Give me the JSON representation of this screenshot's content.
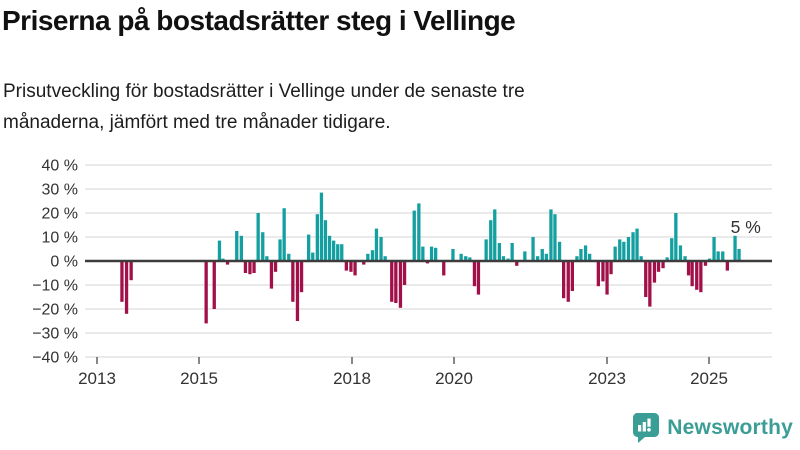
{
  "header": {
    "title": "Priserna på bostadsrätter steg i Vellinge",
    "subtitle_lines": [
      "Prisutveckling för bostadsrätter i Vellinge under de senaste tre",
      "månaderna, jämfört med tre månader tidigare."
    ]
  },
  "chart_data": {
    "type": "bar",
    "title": "Prisutveckling för bostadsrätter i Vellinge, tre månader jämfört med tre månader tidigare",
    "xlabel": "",
    "ylabel": "",
    "unit": "%",
    "grid": true,
    "legend": "none",
    "ylim": [
      -40,
      40
    ],
    "ytick_step": 10,
    "ytick_labels": [
      "40 %",
      "30 %",
      "20 %",
      "10 %",
      "0 %",
      "−10 %",
      "−20 %",
      "−30 %",
      "−40 %"
    ],
    "xticks": [
      2013,
      2015,
      2018,
      2020,
      2023,
      2025
    ],
    "xlim": [
      2012.77,
      2026.2
    ],
    "annotation": {
      "text": "5 %",
      "t": 2025.72,
      "v": 5
    },
    "colors": {
      "positive": "#14a0a0",
      "negative": "#a11048",
      "grid": "#e3e3e3",
      "zero_line": "#3c3c3c",
      "axis_text": "#333333",
      "tick": "#555555"
    },
    "points": [
      [
        2013.49,
        -17
      ],
      [
        2013.58,
        -22
      ],
      [
        2013.67,
        -8
      ],
      [
        2015.14,
        -26
      ],
      [
        2015.3,
        -20
      ],
      [
        2015.4,
        8.5
      ],
      [
        2015.47,
        1
      ],
      [
        2015.56,
        -1.5
      ],
      [
        2015.74,
        12.5
      ],
      [
        2015.83,
        10.5
      ],
      [
        2015.91,
        -5
      ],
      [
        2016.0,
        -5.5
      ],
      [
        2016.08,
        -5
      ],
      [
        2016.16,
        20
      ],
      [
        2016.25,
        12
      ],
      [
        2016.33,
        2
      ],
      [
        2016.42,
        -11.5
      ],
      [
        2016.5,
        -4.5
      ],
      [
        2016.59,
        9
      ],
      [
        2016.67,
        22
      ],
      [
        2016.76,
        3
      ],
      [
        2016.84,
        -17
      ],
      [
        2016.93,
        -25
      ],
      [
        2017.01,
        -13
      ],
      [
        2017.15,
        11
      ],
      [
        2017.23,
        3.5
      ],
      [
        2017.32,
        19.5
      ],
      [
        2017.4,
        28.5
      ],
      [
        2017.48,
        17
      ],
      [
        2017.56,
        10.5
      ],
      [
        2017.64,
        8.5
      ],
      [
        2017.72,
        7
      ],
      [
        2017.8,
        7
      ],
      [
        2017.89,
        -4
      ],
      [
        2017.98,
        -4.5
      ],
      [
        2018.06,
        -6
      ],
      [
        2018.23,
        -1.5
      ],
      [
        2018.31,
        3
      ],
      [
        2018.4,
        4.5
      ],
      [
        2018.48,
        13.5
      ],
      [
        2018.57,
        10
      ],
      [
        2018.65,
        2
      ],
      [
        2018.78,
        -17
      ],
      [
        2018.86,
        -17.5
      ],
      [
        2018.95,
        -19.5
      ],
      [
        2019.03,
        -10
      ],
      [
        2019.22,
        21
      ],
      [
        2019.31,
        24
      ],
      [
        2019.39,
        6
      ],
      [
        2019.48,
        -1
      ],
      [
        2019.56,
        6
      ],
      [
        2019.64,
        5.5
      ],
      [
        2019.8,
        -6
      ],
      [
        2019.98,
        5
      ],
      [
        2020.14,
        3
      ],
      [
        2020.23,
        2
      ],
      [
        2020.31,
        1.5
      ],
      [
        2020.4,
        -10.5
      ],
      [
        2020.48,
        -14
      ],
      [
        2020.63,
        9
      ],
      [
        2020.72,
        17
      ],
      [
        2020.8,
        21.5
      ],
      [
        2020.89,
        7.5
      ],
      [
        2020.97,
        2
      ],
      [
        2021.06,
        1
      ],
      [
        2021.14,
        7.5
      ],
      [
        2021.23,
        -2
      ],
      [
        2021.39,
        4
      ],
      [
        2021.55,
        10
      ],
      [
        2021.64,
        2
      ],
      [
        2021.73,
        5
      ],
      [
        2021.81,
        3
      ],
      [
        2021.9,
        21.5
      ],
      [
        2021.98,
        19.5
      ],
      [
        2022.07,
        8
      ],
      [
        2022.15,
        -15.5
      ],
      [
        2022.24,
        -17
      ],
      [
        2022.32,
        -12.5
      ],
      [
        2022.41,
        2
      ],
      [
        2022.49,
        5
      ],
      [
        2022.58,
        6.5
      ],
      [
        2022.66,
        3
      ],
      [
        2022.83,
        -10.5
      ],
      [
        2022.92,
        -8.5
      ],
      [
        2023.0,
        -14
      ],
      [
        2023.08,
        -5.5
      ],
      [
        2023.16,
        6
      ],
      [
        2023.25,
        9
      ],
      [
        2023.33,
        8
      ],
      [
        2023.42,
        10
      ],
      [
        2023.51,
        12
      ],
      [
        2023.59,
        13.5
      ],
      [
        2023.67,
        2
      ],
      [
        2023.76,
        -15
      ],
      [
        2023.84,
        -19
      ],
      [
        2023.93,
        -9
      ],
      [
        2024.01,
        -4.5
      ],
      [
        2024.1,
        -3
      ],
      [
        2024.18,
        1.5
      ],
      [
        2024.27,
        9.5
      ],
      [
        2024.35,
        20
      ],
      [
        2024.44,
        6.5
      ],
      [
        2024.53,
        2
      ],
      [
        2024.6,
        -6
      ],
      [
        2024.67,
        -10.5
      ],
      [
        2024.76,
        -12
      ],
      [
        2024.84,
        -13
      ],
      [
        2024.93,
        -2
      ],
      [
        2025.01,
        1
      ],
      [
        2025.1,
        10
      ],
      [
        2025.18,
        4
      ],
      [
        2025.27,
        4
      ],
      [
        2025.36,
        -4
      ],
      [
        2025.51,
        10.5
      ],
      [
        2025.59,
        5
      ]
    ]
  },
  "footer": {
    "brand": "Newsworthy",
    "brand_color": "#3b9e96",
    "logo_icon": "newsworthy-speech-bubble-chart-icon"
  }
}
